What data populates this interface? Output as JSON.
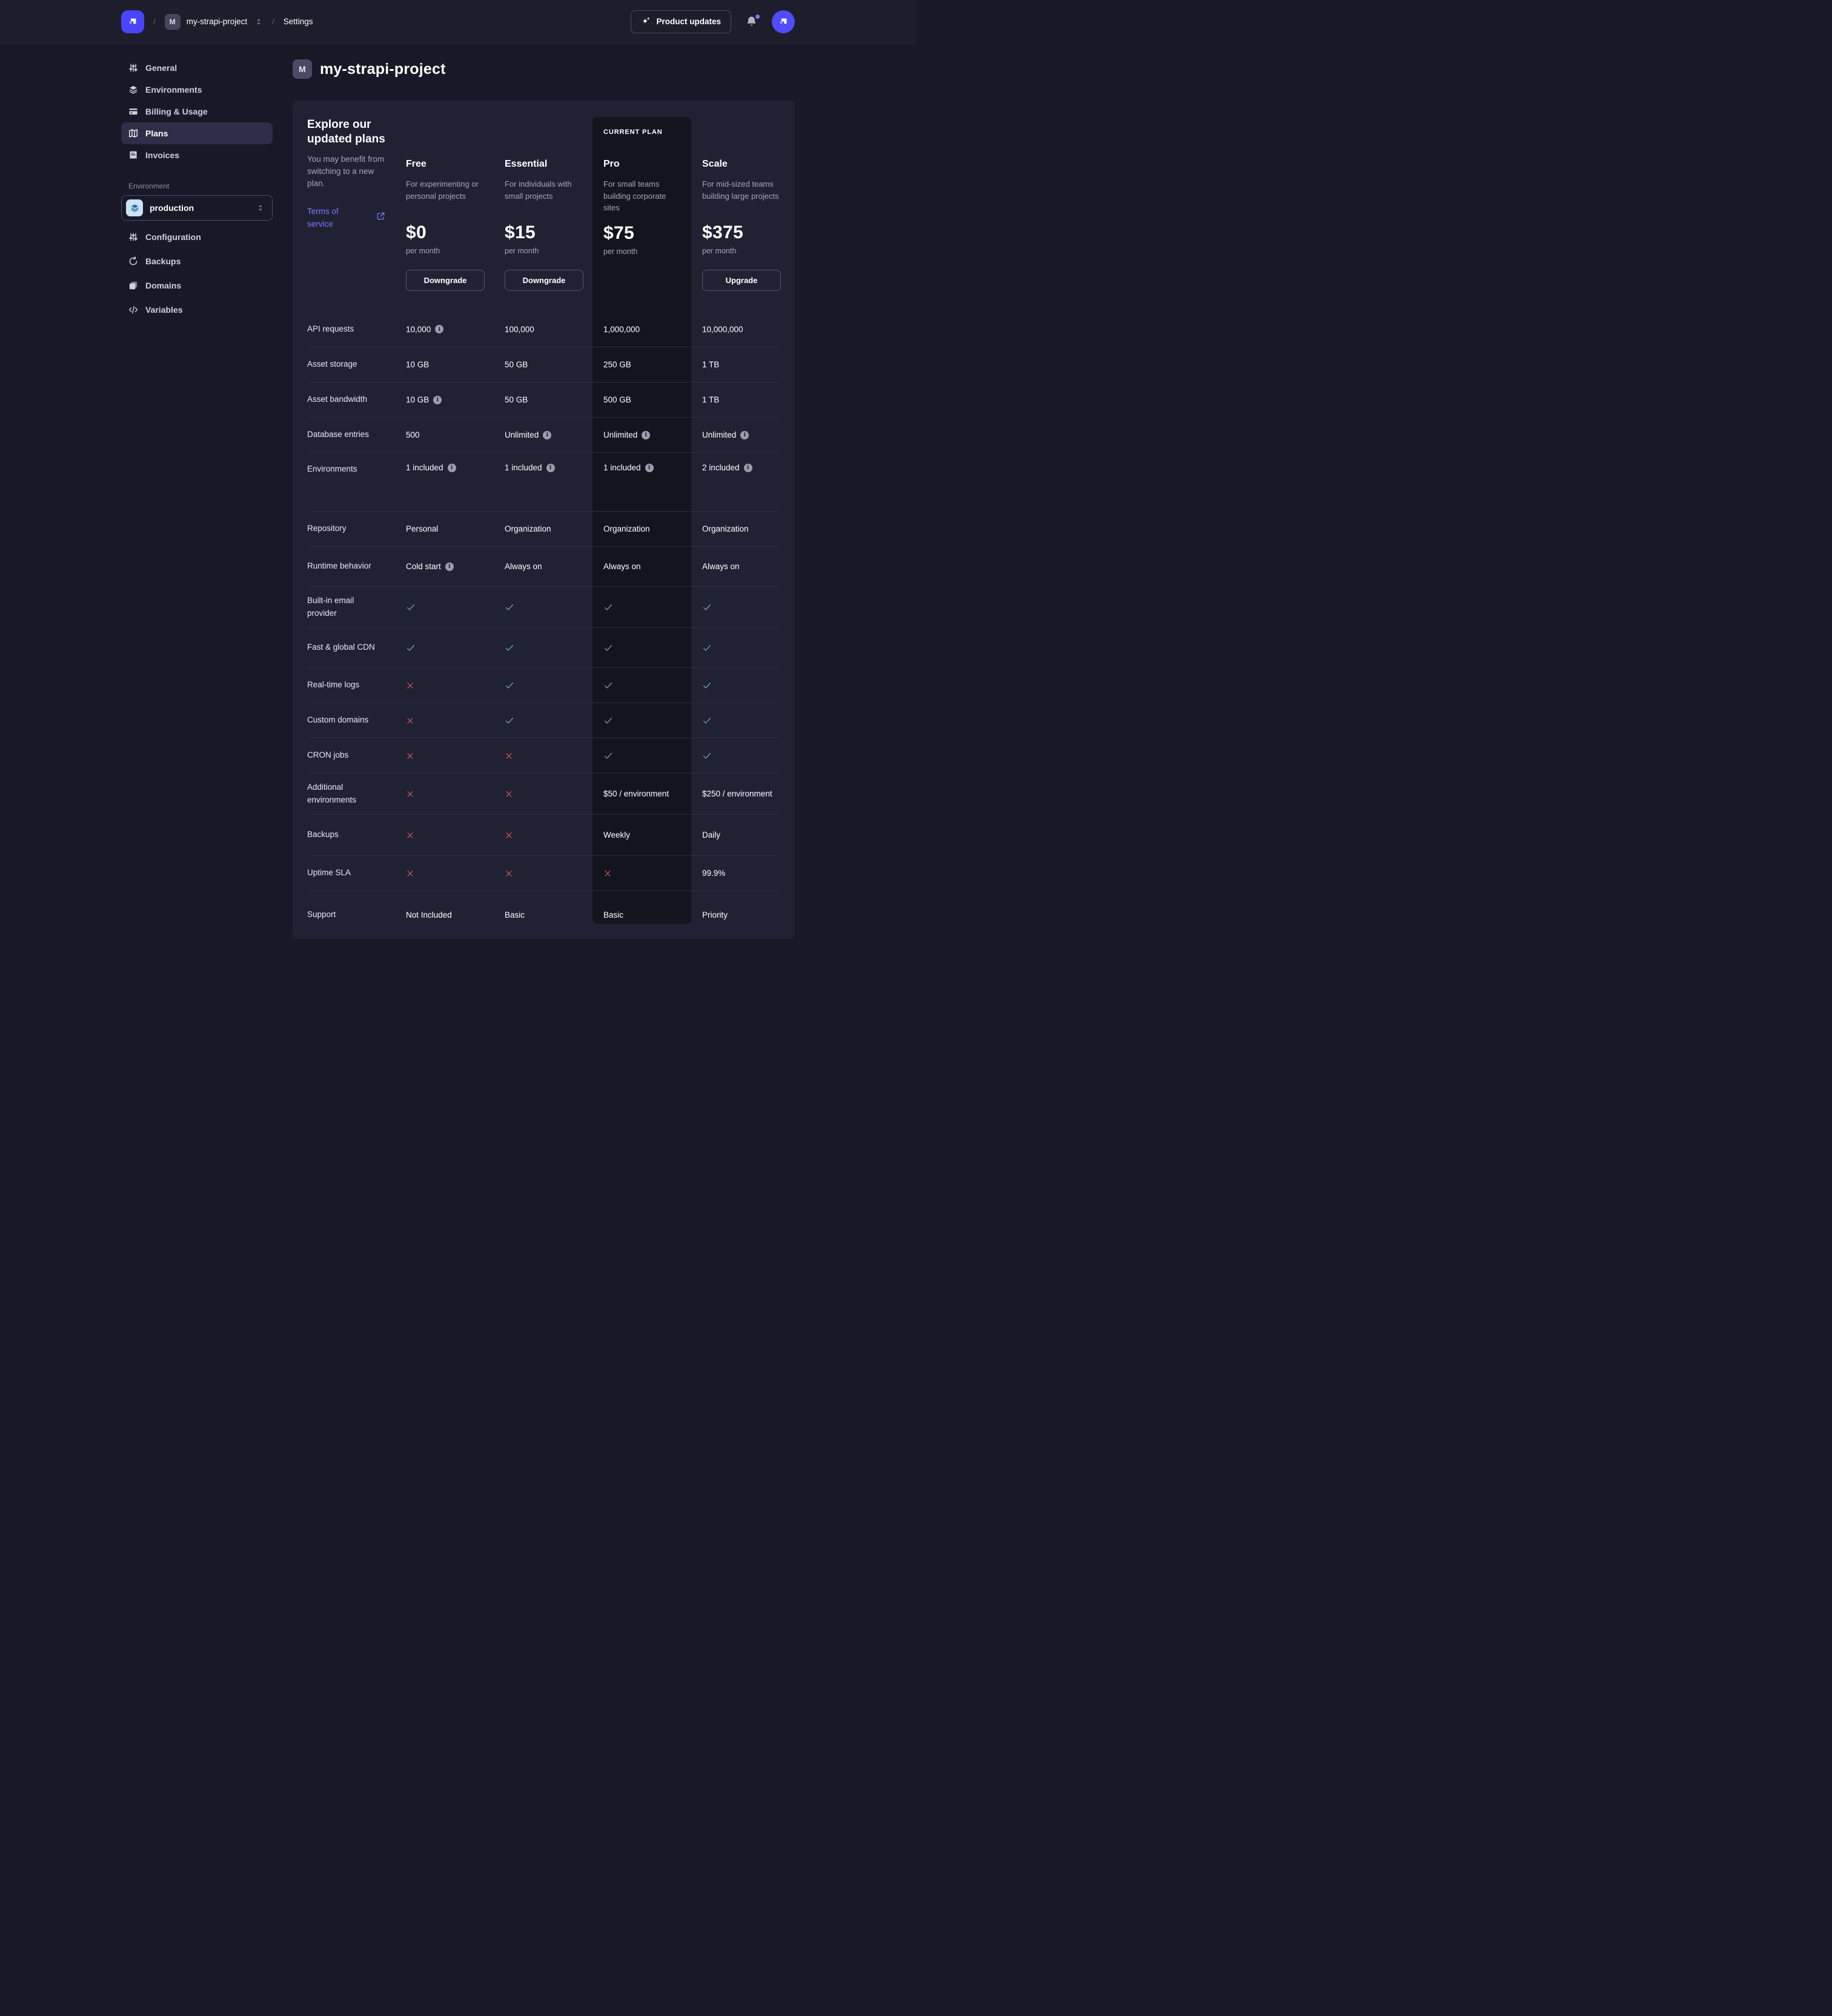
{
  "navbar": {
    "product_updates": "Product updates",
    "breadcrumb": {
      "separator": "/",
      "project_initial": "M",
      "project": "my-strapi-project",
      "section": "Settings"
    }
  },
  "sidebar": {
    "items": [
      {
        "label": "General",
        "icon": "sliders",
        "active": false
      },
      {
        "label": "Environments",
        "icon": "layers",
        "active": false
      },
      {
        "label": "Billing & Usage",
        "icon": "credit-card",
        "active": false
      },
      {
        "label": "Plans",
        "icon": "plans",
        "active": true
      },
      {
        "label": "Invoices",
        "icon": "invoice",
        "active": false
      }
    ],
    "environment": {
      "label": "Environment",
      "value": "production",
      "items": [
        {
          "label": "Configuration",
          "icon": "sliders"
        },
        {
          "label": "Backups",
          "icon": "refresh"
        },
        {
          "label": "Domains",
          "icon": "copy"
        },
        {
          "label": "Variables",
          "icon": "code"
        }
      ]
    }
  },
  "page": {
    "title_initial": "M",
    "title": "my-strapi-project"
  },
  "plans": {
    "intro": {
      "title": "Explore our updated plans",
      "body": "You may benefit from switching to a new plan.",
      "link": "Terms of service"
    },
    "current_plan_label": "CURRENT PLAN",
    "columns": [
      {
        "name": "Free",
        "description": "For experimenting or personal projects",
        "price": "$0",
        "period": "per month",
        "action": "Downgrade",
        "current": false
      },
      {
        "name": "Essential",
        "description": "For individuals with small projects",
        "price": "$15",
        "period": "per month",
        "action": "Downgrade",
        "current": false
      },
      {
        "name": "Pro",
        "description": "For small teams building corporate sites",
        "price": "$75",
        "period": "per month",
        "action": null,
        "current": true
      },
      {
        "name": "Scale",
        "description": "For mid-sized teams building large projects",
        "price": "$375",
        "period": "per month",
        "action": "Upgrade",
        "current": false
      }
    ],
    "features": [
      {
        "label": "API requests",
        "values": [
          {
            "type": "text",
            "text": "10,000",
            "info": true
          },
          {
            "type": "text",
            "text": "100,000"
          },
          {
            "type": "text",
            "text": "1,000,000"
          },
          {
            "type": "text",
            "text": "10,000,000"
          }
        ]
      },
      {
        "label": "Asset storage",
        "values": [
          {
            "type": "text",
            "text": "10 GB"
          },
          {
            "type": "text",
            "text": "50 GB"
          },
          {
            "type": "text",
            "text": "250 GB"
          },
          {
            "type": "text",
            "text": "1 TB"
          }
        ]
      },
      {
        "label": "Asset bandwidth",
        "values": [
          {
            "type": "text",
            "text": "10 GB",
            "info": true
          },
          {
            "type": "text",
            "text": "50 GB"
          },
          {
            "type": "text",
            "text": "500 GB"
          },
          {
            "type": "text",
            "text": "1 TB"
          }
        ]
      },
      {
        "label": "Database entries",
        "values": [
          {
            "type": "text",
            "text": "500"
          },
          {
            "type": "text",
            "text": "Unlimited",
            "info": true
          },
          {
            "type": "text",
            "text": "Unlimited",
            "info": true
          },
          {
            "type": "text",
            "text": "Unlimited",
            "info": true
          }
        ]
      },
      {
        "label": "Environments",
        "values": [
          {
            "type": "text",
            "text": "1 included",
            "info": true
          },
          {
            "type": "text",
            "text": "1 included",
            "info": true
          },
          {
            "type": "text",
            "text": "1 included",
            "info": true
          },
          {
            "type": "text",
            "text": "2 included",
            "info": true
          }
        ]
      },
      {
        "label": "Repository",
        "values": [
          {
            "type": "text",
            "text": "Personal"
          },
          {
            "type": "text",
            "text": "Organization"
          },
          {
            "type": "text",
            "text": "Organization"
          },
          {
            "type": "text",
            "text": "Organization"
          }
        ]
      },
      {
        "label": "Runtime behavior",
        "values": [
          {
            "type": "text",
            "text": "Cold start",
            "info": true
          },
          {
            "type": "text",
            "text": "Always on"
          },
          {
            "type": "text",
            "text": "Always on"
          },
          {
            "type": "text",
            "text": "Always on"
          }
        ]
      },
      {
        "label": "Built-in email provider",
        "values": [
          {
            "type": "check"
          },
          {
            "type": "check"
          },
          {
            "type": "check"
          },
          {
            "type": "check"
          }
        ]
      },
      {
        "label": "Fast & global CDN",
        "values": [
          {
            "type": "check"
          },
          {
            "type": "check"
          },
          {
            "type": "check"
          },
          {
            "type": "check"
          }
        ]
      },
      {
        "label": "Real-time logs",
        "values": [
          {
            "type": "cross"
          },
          {
            "type": "check"
          },
          {
            "type": "check"
          },
          {
            "type": "check"
          }
        ]
      },
      {
        "label": "Custom domains",
        "values": [
          {
            "type": "cross"
          },
          {
            "type": "check"
          },
          {
            "type": "check"
          },
          {
            "type": "check"
          }
        ]
      },
      {
        "label": "CRON jobs",
        "values": [
          {
            "type": "cross"
          },
          {
            "type": "cross"
          },
          {
            "type": "check"
          },
          {
            "type": "check"
          }
        ]
      },
      {
        "label": "Additional environments",
        "values": [
          {
            "type": "cross"
          },
          {
            "type": "cross"
          },
          {
            "type": "text",
            "text": "$50 / environment"
          },
          {
            "type": "text",
            "text": "$250 / environment"
          }
        ]
      },
      {
        "label": "Backups",
        "values": [
          {
            "type": "cross"
          },
          {
            "type": "cross"
          },
          {
            "type": "text",
            "text": "Weekly"
          },
          {
            "type": "text",
            "text": "Daily"
          }
        ]
      },
      {
        "label": "Uptime SLA",
        "values": [
          {
            "type": "cross"
          },
          {
            "type": "cross"
          },
          {
            "type": "cross"
          },
          {
            "type": "text",
            "text": "99.9%"
          }
        ]
      },
      {
        "label": "Support",
        "values": [
          {
            "type": "text",
            "text": "Not Included"
          },
          {
            "type": "text",
            "text": "Basic"
          },
          {
            "type": "text",
            "text": "Basic"
          },
          {
            "type": "text",
            "text": "Priority"
          }
        ]
      }
    ]
  },
  "colors": {
    "accent": "#4945ff",
    "link": "#7b79ff",
    "success": "#6ebe82",
    "danger": "#ee5e52",
    "page_bg": "#181826",
    "card_bg": "#212134",
    "current_plan_bg": "#14141f",
    "row_border": "#2c2c43"
  }
}
